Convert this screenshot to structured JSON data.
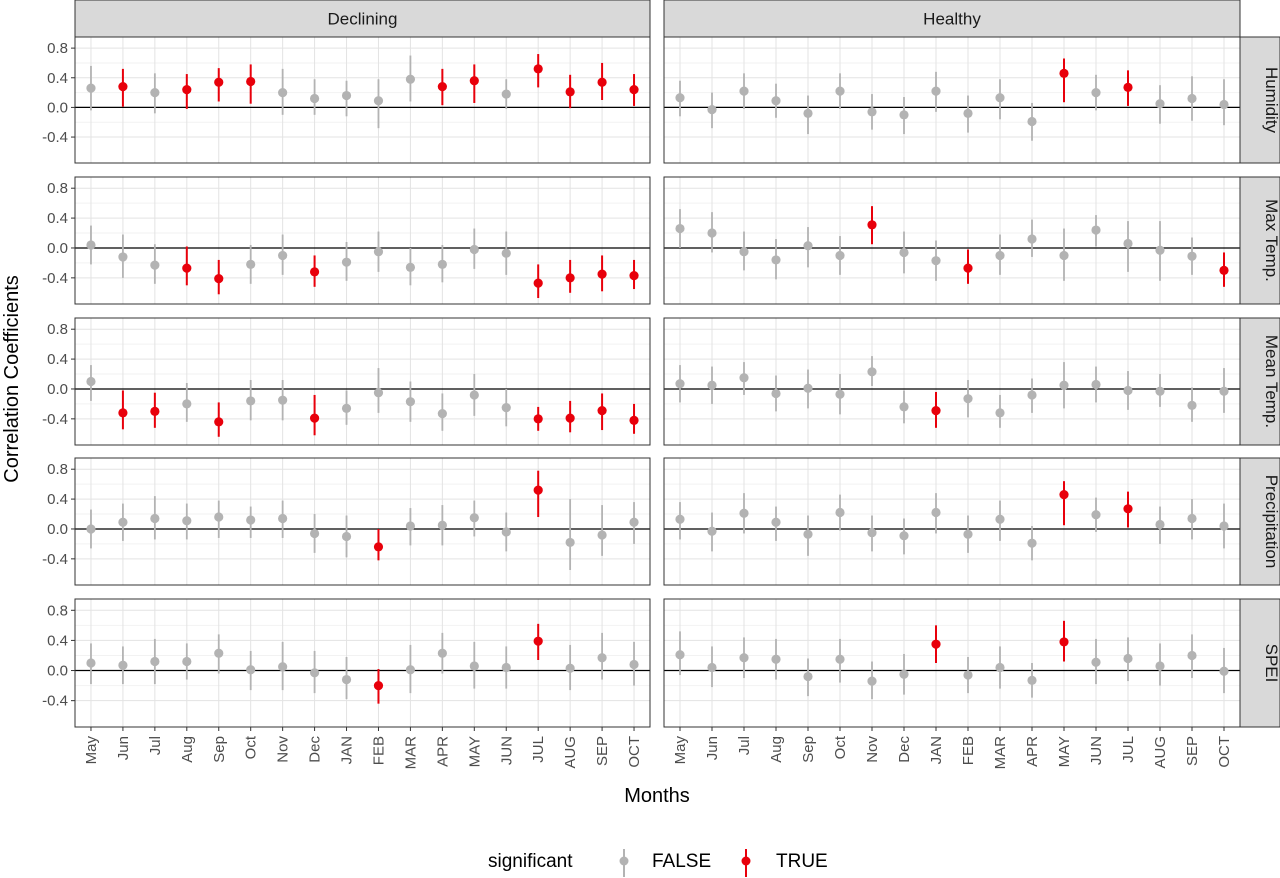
{
  "chart_data": {
    "type": "scatter",
    "subtype": "point-range faceted",
    "xlabel": "Months",
    "ylabel": "Correlation Coefficients",
    "ylim": [
      -0.75,
      0.95
    ],
    "yticks": [
      -0.4,
      0.0,
      0.4,
      0.8
    ],
    "ytick_labels": [
      "-0.4",
      "0.0",
      "0.4",
      "0.8"
    ],
    "grid": true,
    "categories": [
      "May",
      "Jun",
      "Jul",
      "Aug",
      "Sep",
      "Oct",
      "Nov",
      "Dec",
      "JAN",
      "FEB",
      "MAR",
      "APR",
      "MAY",
      "JUN",
      "JUL",
      "AUG",
      "SEP",
      "OCT"
    ],
    "columns": [
      "Declining",
      "Healthy"
    ],
    "rows": [
      "Humidity",
      "Max Temp.",
      "Mean Temp.",
      "Precipitation",
      "SPEI"
    ],
    "legend": {
      "title": "significant",
      "position": "bottom",
      "entries": [
        {
          "label": "FALSE",
          "color": "#b3b3b3"
        },
        {
          "label": "TRUE",
          "color": "#e8000b"
        }
      ]
    },
    "colors": {
      "false": "#b3b3b3",
      "true": "#e8000b",
      "zero_line": "#000000",
      "strip_bg": "#d9d9d9"
    },
    "panels": [
      {
        "column": "Declining",
        "row": "Humidity",
        "values": [
          0.26,
          0.28,
          0.2,
          0.24,
          0.34,
          0.35,
          0.2,
          0.12,
          0.16,
          0.09,
          0.38,
          0.28,
          0.36,
          0.18,
          0.52,
          0.21,
          0.34,
          0.24
        ],
        "lower": [
          -0.04,
          0.01,
          -0.08,
          -0.02,
          0.08,
          0.05,
          -0.1,
          -0.1,
          -0.12,
          -0.28,
          0.08,
          0.03,
          0.06,
          -0.02,
          0.27,
          -0.01,
          0.1,
          0.02
        ],
        "upper": [
          0.56,
          0.52,
          0.46,
          0.45,
          0.53,
          0.58,
          0.52,
          0.38,
          0.36,
          0.38,
          0.7,
          0.52,
          0.58,
          0.38,
          0.72,
          0.44,
          0.6,
          0.45
        ],
        "significant": [
          false,
          true,
          false,
          true,
          true,
          true,
          false,
          false,
          false,
          false,
          false,
          true,
          true,
          false,
          true,
          true,
          true,
          true
        ]
      },
      {
        "column": "Healthy",
        "row": "Humidity",
        "values": [
          0.13,
          -0.03,
          0.22,
          0.09,
          -0.08,
          0.22,
          -0.06,
          -0.1,
          0.22,
          -0.08,
          0.13,
          -0.19,
          0.46,
          0.2,
          0.27,
          0.05,
          0.12,
          0.04
        ],
        "lower": [
          -0.12,
          -0.28,
          -0.02,
          -0.14,
          -0.36,
          -0.02,
          -0.3,
          -0.36,
          -0.06,
          -0.34,
          -0.16,
          -0.45,
          0.07,
          -0.04,
          0.02,
          -0.22,
          -0.18,
          -0.24
        ],
        "upper": [
          0.36,
          0.2,
          0.46,
          0.32,
          0.16,
          0.46,
          0.18,
          0.14,
          0.48,
          0.16,
          0.38,
          0.06,
          0.66,
          0.44,
          0.5,
          0.3,
          0.42,
          0.38
        ],
        "significant": [
          false,
          false,
          false,
          false,
          false,
          false,
          false,
          false,
          false,
          false,
          false,
          false,
          true,
          false,
          true,
          false,
          false,
          false
        ]
      },
      {
        "column": "Declining",
        "row": "Max Temp.",
        "values": [
          0.04,
          -0.12,
          -0.23,
          -0.27,
          -0.41,
          -0.22,
          -0.1,
          -0.32,
          -0.19,
          -0.05,
          -0.26,
          -0.22,
          -0.02,
          -0.07,
          -0.47,
          -0.4,
          -0.35,
          -0.37
        ],
        "lower": [
          -0.22,
          -0.4,
          -0.48,
          -0.5,
          -0.62,
          -0.48,
          -0.36,
          -0.52,
          -0.44,
          -0.32,
          -0.5,
          -0.46,
          -0.28,
          -0.36,
          -0.67,
          -0.6,
          -0.58,
          -0.55
        ],
        "upper": [
          0.3,
          0.18,
          0.05,
          0.02,
          -0.16,
          0.04,
          0.18,
          -0.1,
          0.08,
          0.22,
          0.0,
          0.04,
          0.26,
          0.22,
          -0.22,
          -0.16,
          -0.1,
          -0.16
        ],
        "significant": [
          false,
          false,
          false,
          true,
          true,
          false,
          false,
          true,
          false,
          false,
          false,
          false,
          false,
          false,
          true,
          true,
          true,
          true
        ]
      },
      {
        "column": "Healthy",
        "row": "Max Temp.",
        "values": [
          0.26,
          0.2,
          -0.05,
          -0.16,
          0.03,
          -0.1,
          0.31,
          -0.06,
          -0.17,
          -0.27,
          -0.1,
          0.12,
          -0.1,
          0.24,
          0.06,
          -0.03,
          -0.11,
          -0.3
        ],
        "lower": [
          0.0,
          -0.06,
          -0.3,
          -0.42,
          -0.26,
          -0.36,
          0.05,
          -0.34,
          -0.44,
          -0.48,
          -0.36,
          -0.12,
          -0.44,
          0.02,
          -0.32,
          -0.44,
          -0.36,
          -0.52
        ],
        "upper": [
          0.52,
          0.48,
          0.22,
          0.12,
          0.28,
          0.16,
          0.56,
          0.22,
          0.1,
          -0.02,
          0.18,
          0.38,
          0.26,
          0.44,
          0.36,
          0.36,
          0.14,
          -0.06
        ],
        "significant": [
          false,
          false,
          false,
          false,
          false,
          false,
          true,
          false,
          false,
          true,
          false,
          false,
          false,
          false,
          false,
          false,
          false,
          true
        ]
      },
      {
        "column": "Declining",
        "row": "Mean Temp.",
        "values": [
          0.1,
          -0.32,
          -0.3,
          -0.2,
          -0.44,
          -0.16,
          -0.15,
          -0.39,
          -0.26,
          -0.05,
          -0.17,
          -0.33,
          -0.08,
          -0.25,
          -0.4,
          -0.39,
          -0.29,
          -0.42
        ],
        "lower": [
          -0.16,
          -0.54,
          -0.52,
          -0.44,
          -0.64,
          -0.42,
          -0.42,
          -0.62,
          -0.48,
          -0.32,
          -0.44,
          -0.56,
          -0.36,
          -0.5,
          -0.56,
          -0.58,
          -0.55,
          -0.6
        ],
        "upper": [
          0.32,
          -0.02,
          -0.05,
          0.08,
          -0.18,
          0.12,
          0.12,
          -0.08,
          -0.02,
          0.28,
          0.1,
          -0.06,
          0.2,
          0.0,
          -0.24,
          -0.16,
          -0.06,
          -0.2
        ],
        "significant": [
          false,
          true,
          true,
          false,
          true,
          false,
          false,
          true,
          false,
          false,
          false,
          false,
          false,
          false,
          true,
          true,
          true,
          true
        ]
      },
      {
        "column": "Healthy",
        "row": "Mean Temp.",
        "values": [
          0.07,
          0.05,
          0.15,
          -0.06,
          0.01,
          -0.07,
          0.23,
          -0.24,
          -0.29,
          -0.13,
          -0.32,
          -0.08,
          0.05,
          0.06,
          -0.02,
          -0.03,
          -0.22,
          -0.03
        ],
        "lower": [
          -0.18,
          -0.2,
          -0.08,
          -0.3,
          -0.26,
          -0.34,
          0.04,
          -0.46,
          -0.52,
          -0.38,
          -0.52,
          -0.32,
          -0.26,
          -0.18,
          -0.28,
          -0.24,
          -0.44,
          -0.32
        ],
        "upper": [
          0.32,
          0.3,
          0.36,
          0.18,
          0.26,
          0.2,
          0.44,
          -0.02,
          -0.04,
          0.12,
          -0.08,
          0.14,
          0.36,
          0.3,
          0.24,
          0.2,
          0.02,
          0.28
        ],
        "significant": [
          false,
          false,
          false,
          false,
          false,
          false,
          false,
          false,
          true,
          false,
          false,
          false,
          false,
          false,
          false,
          false,
          false,
          false
        ]
      },
      {
        "column": "Declining",
        "row": "Precipitation",
        "values": [
          0.0,
          0.09,
          0.14,
          0.11,
          0.16,
          0.12,
          0.14,
          -0.06,
          -0.1,
          -0.24,
          0.04,
          0.05,
          0.15,
          -0.04,
          0.52,
          -0.18,
          -0.08,
          0.09
        ],
        "lower": [
          -0.26,
          -0.16,
          -0.14,
          -0.14,
          -0.12,
          -0.12,
          -0.12,
          -0.32,
          -0.38,
          -0.42,
          -0.22,
          -0.22,
          -0.1,
          -0.3,
          0.16,
          -0.55,
          -0.36,
          -0.2
        ],
        "upper": [
          0.26,
          0.34,
          0.44,
          0.34,
          0.38,
          0.3,
          0.38,
          0.2,
          0.18,
          0.0,
          0.28,
          0.32,
          0.38,
          0.22,
          0.78,
          0.4,
          0.32,
          0.36
        ],
        "significant": [
          false,
          false,
          false,
          false,
          false,
          false,
          false,
          false,
          false,
          true,
          false,
          false,
          false,
          false,
          true,
          false,
          false,
          false
        ]
      },
      {
        "column": "Healthy",
        "row": "Precipitation",
        "values": [
          0.13,
          -0.03,
          0.21,
          0.09,
          -0.07,
          0.22,
          -0.05,
          -0.09,
          0.22,
          -0.07,
          0.13,
          -0.19,
          0.46,
          0.19,
          0.27,
          0.06,
          0.14,
          0.04
        ],
        "lower": [
          -0.14,
          -0.3,
          -0.06,
          -0.16,
          -0.36,
          -0.02,
          -0.3,
          -0.34,
          -0.06,
          -0.32,
          -0.16,
          -0.42,
          0.05,
          -0.04,
          0.02,
          -0.2,
          -0.14,
          -0.26
        ],
        "upper": [
          0.36,
          0.22,
          0.48,
          0.3,
          0.18,
          0.46,
          0.18,
          0.14,
          0.48,
          0.18,
          0.38,
          0.04,
          0.64,
          0.42,
          0.5,
          0.3,
          0.4,
          0.34
        ],
        "significant": [
          false,
          false,
          false,
          false,
          false,
          false,
          false,
          false,
          false,
          false,
          false,
          false,
          true,
          false,
          true,
          false,
          false,
          false
        ]
      },
      {
        "column": "Declining",
        "row": "SPEI",
        "values": [
          0.1,
          0.07,
          0.12,
          0.12,
          0.23,
          0.01,
          0.05,
          -0.03,
          -0.12,
          -0.2,
          0.01,
          0.23,
          0.06,
          0.04,
          0.39,
          0.03,
          0.17,
          0.08
        ],
        "lower": [
          -0.18,
          -0.18,
          -0.18,
          -0.12,
          -0.04,
          -0.26,
          -0.26,
          -0.3,
          -0.38,
          -0.44,
          -0.3,
          -0.04,
          -0.24,
          -0.24,
          0.14,
          -0.26,
          -0.12,
          -0.2
        ],
        "upper": [
          0.36,
          0.32,
          0.42,
          0.36,
          0.48,
          0.26,
          0.38,
          0.26,
          0.18,
          0.02,
          0.34,
          0.5,
          0.38,
          0.32,
          0.62,
          0.34,
          0.5,
          0.38
        ],
        "significant": [
          false,
          false,
          false,
          false,
          false,
          false,
          false,
          false,
          false,
          true,
          false,
          false,
          false,
          false,
          true,
          false,
          false,
          false
        ]
      },
      {
        "column": "Healthy",
        "row": "SPEI",
        "values": [
          0.21,
          0.04,
          0.17,
          0.15,
          -0.08,
          0.15,
          -0.14,
          -0.05,
          0.35,
          -0.06,
          0.04,
          -0.13,
          0.38,
          0.11,
          0.16,
          0.06,
          0.2,
          -0.01
        ],
        "lower": [
          -0.06,
          -0.22,
          -0.1,
          -0.12,
          -0.34,
          -0.16,
          -0.38,
          -0.32,
          0.1,
          -0.3,
          -0.24,
          -0.36,
          0.12,
          -0.18,
          -0.14,
          -0.2,
          -0.1,
          -0.3
        ],
        "upper": [
          0.52,
          0.32,
          0.44,
          0.42,
          0.16,
          0.42,
          0.12,
          0.22,
          0.6,
          0.18,
          0.32,
          0.1,
          0.66,
          0.42,
          0.44,
          0.36,
          0.48,
          0.3
        ],
        "significant": [
          false,
          false,
          false,
          false,
          false,
          false,
          false,
          false,
          true,
          false,
          false,
          false,
          true,
          false,
          false,
          false,
          false,
          false
        ]
      }
    ]
  }
}
